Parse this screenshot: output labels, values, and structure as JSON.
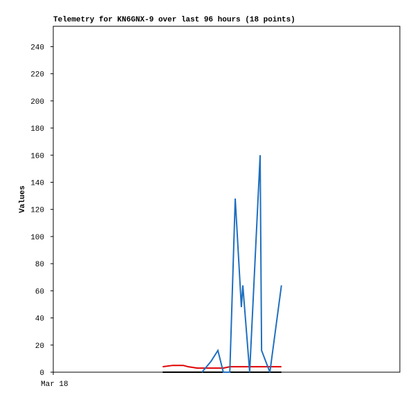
{
  "chart_data": {
    "type": "line",
    "title": "Telemetry for KN6GNX-9 over last 96 hours (18 points)",
    "ylabel": "Values",
    "x": [
      30.3,
      33.1,
      36.0,
      37.4,
      39.9,
      41.2,
      43.7,
      45.6,
      47.1,
      48.9,
      50.4,
      52.1,
      52.5,
      54.4,
      57.3,
      57.7,
      60.0,
      63.2
    ],
    "xlim": [
      0,
      96
    ],
    "xticks": [
      {
        "value": 0,
        "label": "Mar 18"
      }
    ],
    "ylim": [
      0,
      255
    ],
    "yticks": [
      0,
      20,
      40,
      60,
      80,
      100,
      120,
      140,
      160,
      180,
      200,
      220,
      240
    ],
    "series": [
      {
        "color": "#000000",
        "values": [
          0,
          0,
          0,
          0,
          0,
          0,
          0,
          0,
          0,
          0,
          0,
          0,
          0,
          0,
          0,
          0,
          0,
          0
        ]
      },
      {
        "color": "#e00000",
        "values": [
          4,
          5,
          5,
          4,
          3,
          3,
          3,
          3,
          3,
          4,
          4,
          4,
          4,
          4,
          4,
          4,
          4,
          4
        ]
      },
      {
        "color": "#1f6fbf",
        "values": [
          null,
          null,
          null,
          null,
          null,
          0,
          8,
          16,
          0,
          0,
          128,
          48,
          64,
          0,
          160,
          16,
          0,
          64
        ]
      }
    ]
  }
}
